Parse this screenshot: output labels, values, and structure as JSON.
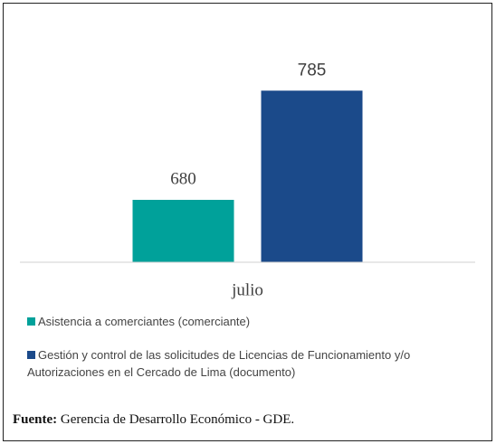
{
  "chart_data": {
    "type": "bar",
    "categories": [
      "julio"
    ],
    "series": [
      {
        "name": "Asistencia a comerciantes (comerciante)",
        "color": "#00a19a",
        "values": [
          680
        ]
      },
      {
        "name": "Gestión y control de las solicitudes de Licencias de Funcionamiento y/o Autorizaciones en el Cercado de Lima (documento)",
        "color": "#1b4a8a",
        "values": [
          785
        ]
      }
    ],
    "ylim": [
      620,
      820
    ],
    "source_label": "Fuente:",
    "source": "Gerencia de Desarrollo Económico - GDE."
  }
}
